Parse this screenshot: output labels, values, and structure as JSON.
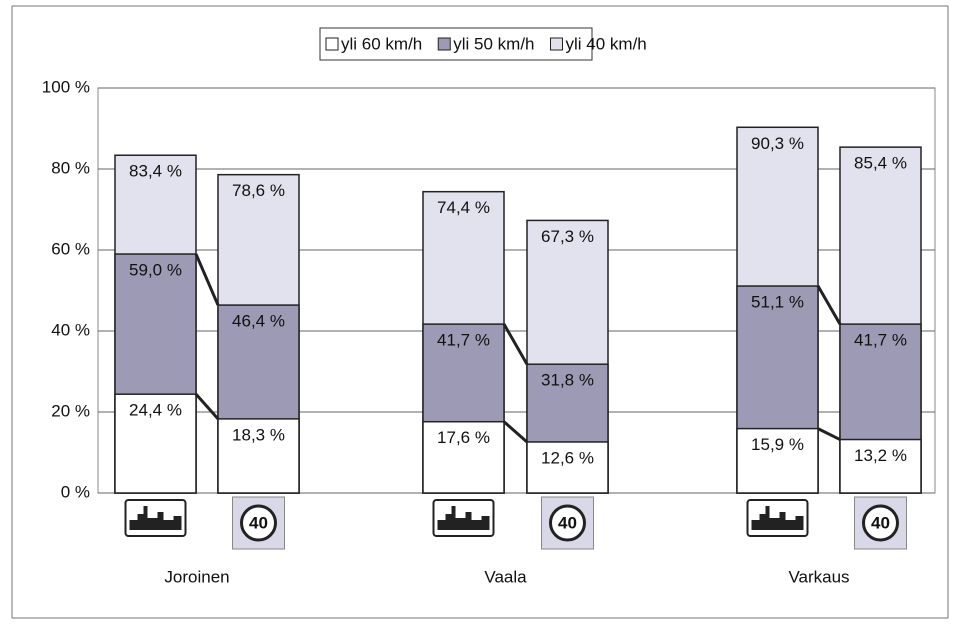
{
  "chart_data": {
    "type": "overlaid_bar",
    "categories": [
      null,
      null,
      null,
      null,
      null,
      null
    ],
    "groups": [
      "Joroinen",
      "Vaala",
      "Varkaus"
    ],
    "speed_sign": "40",
    "series": [
      {
        "name": "yli 40 km/h",
        "color": "#e2e2ee",
        "values": [
          83.4,
          78.6,
          74.4,
          67.3,
          90.3,
          85.4
        ],
        "value_labels": [
          "83,4 %",
          "78,6 %",
          "74,4 %",
          "67,3 %",
          "90,3 %",
          "85,4 %"
        ]
      },
      {
        "name": "yli 50 km/h",
        "color": "#9c9ab4",
        "values": [
          59.0,
          46.4,
          41.7,
          31.8,
          51.1,
          41.7
        ],
        "value_labels": [
          "59,0 %",
          "46,4 %",
          "41,7 %",
          "31,8 %",
          "51,1 %",
          "41,7 %"
        ]
      },
      {
        "name": "yli 60 km/h",
        "color": "#ffffff",
        "values": [
          24.4,
          18.3,
          17.6,
          12.6,
          15.9,
          13.2
        ],
        "value_labels": [
          "24,4 %",
          "18,3 %",
          "17,6 %",
          "12,6 %",
          "15,9 %",
          "13,2 %"
        ]
      }
    ],
    "legend_order": [
      2,
      1,
      0
    ],
    "ylim": [
      0,
      100
    ],
    "yticks": [
      {
        "value": 0,
        "label": "0 %"
      },
      {
        "value": 20,
        "label": "20 %"
      },
      {
        "value": 40,
        "label": "40 %"
      },
      {
        "value": 60,
        "label": "60 %"
      },
      {
        "value": 80,
        "label": "80 %"
      },
      {
        "value": 100,
        "label": "100 %"
      }
    ],
    "grid": true
  }
}
